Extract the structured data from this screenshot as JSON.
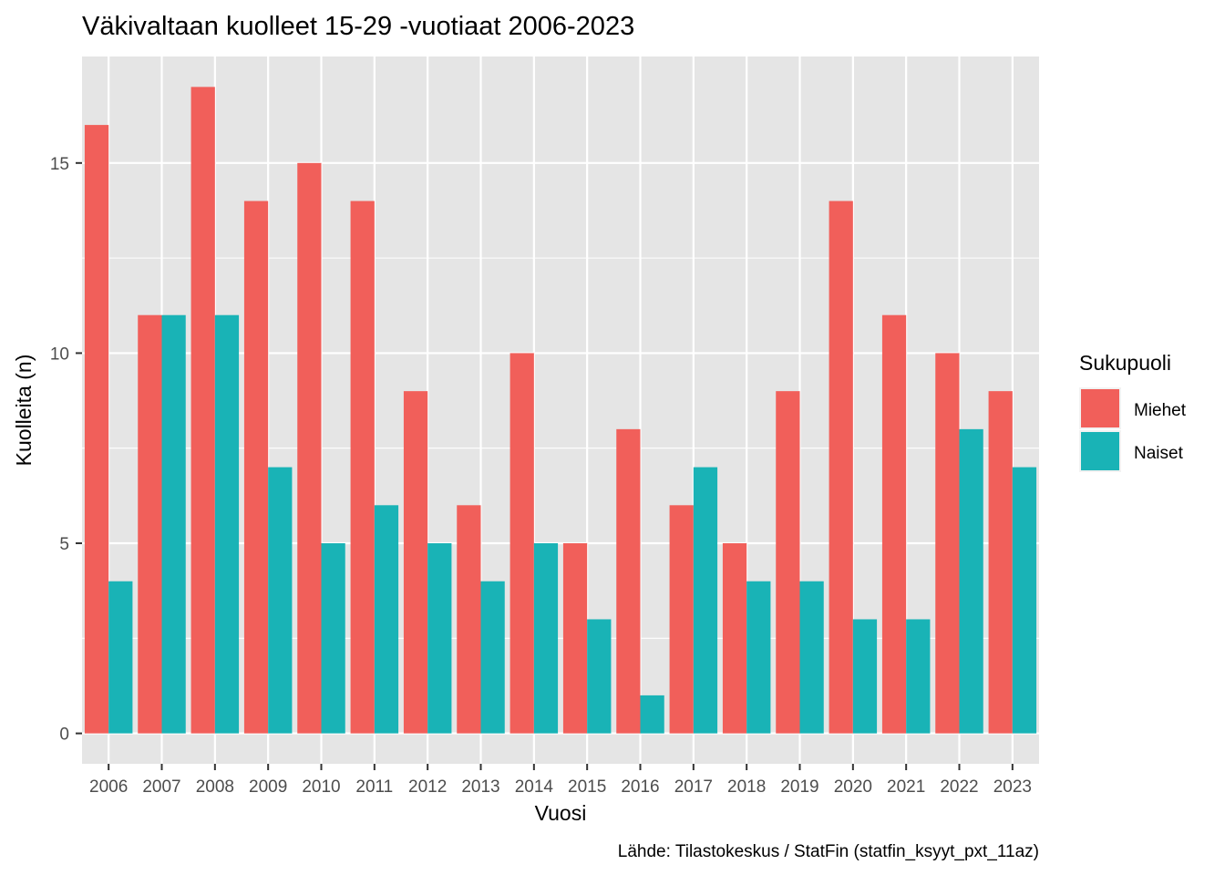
{
  "colors": {
    "panel_bg": "#e5e5e5",
    "grid_major": "#ffffff",
    "miehet": "#f15f5a",
    "naiset": "#19b3b6",
    "tick_text": "#4d4d4d"
  },
  "chart_data": {
    "type": "bar",
    "title": "Väkivaltaan kuolleet 15-29 -vuotiaat 2006-2023",
    "xlabel": "Vuosi",
    "ylabel": "Kuolleita (n)",
    "caption": "Lähde: Tilastokeskus / StatFin (statfin_ksyyt_pxt_11az)",
    "legend_title": "Sukupuoli",
    "legend_position": "right",
    "grid": true,
    "ylim": [
      -0.8,
      17.8
    ],
    "yticks": [
      0,
      5,
      10,
      15
    ],
    "categories": [
      "2006",
      "2007",
      "2008",
      "2009",
      "2010",
      "2011",
      "2012",
      "2013",
      "2014",
      "2015",
      "2016",
      "2017",
      "2018",
      "2019",
      "2020",
      "2021",
      "2022",
      "2023"
    ],
    "series": [
      {
        "name": "Miehet",
        "values": [
          16,
          11,
          17,
          14,
          15,
          14,
          9,
          6,
          10,
          5,
          8,
          6,
          5,
          9,
          14,
          11,
          10,
          9
        ]
      },
      {
        "name": "Naiset",
        "values": [
          4,
          11,
          11,
          7,
          5,
          6,
          5,
          4,
          5,
          3,
          1,
          7,
          4,
          4,
          3,
          3,
          8,
          7
        ]
      }
    ]
  }
}
